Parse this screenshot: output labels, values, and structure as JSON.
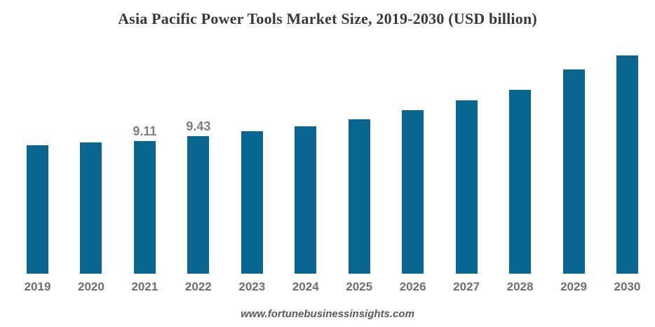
{
  "title": "Asia Pacific Power Tools Market Size, 2019-2030 (USD billion)",
  "footer": "www.fortunebusinessinsights.com",
  "colors": {
    "background": "#ffffff",
    "bar": "#086690",
    "title_text": "#383838",
    "axis_label_text": "#6e6e6e",
    "data_label_text": "#7d7d7d",
    "footer_text": "#595959"
  },
  "chart_data": {
    "type": "bar",
    "title": "Asia Pacific Power Tools Market Size, 2019-2030 (USD billion)",
    "unit": "USD billion",
    "categories": [
      "2019",
      "2020",
      "2021",
      "2022",
      "2023",
      "2024",
      "2025",
      "2026",
      "2027",
      "2028",
      "2029",
      "2030"
    ],
    "values": [
      8.81,
      9.0,
      9.11,
      9.43,
      9.77,
      10.11,
      10.59,
      11.21,
      11.89,
      12.61,
      14.01,
      14.97
    ],
    "data_labels": {
      "2021": "9.11",
      "2022": "9.43"
    },
    "xlabel": "",
    "ylabel": "",
    "ylim": [
      0,
      15.9
    ],
    "grid": false,
    "legend": false,
    "axis_lines": false,
    "source_note": "www.fortunebusinessinsights.com"
  }
}
